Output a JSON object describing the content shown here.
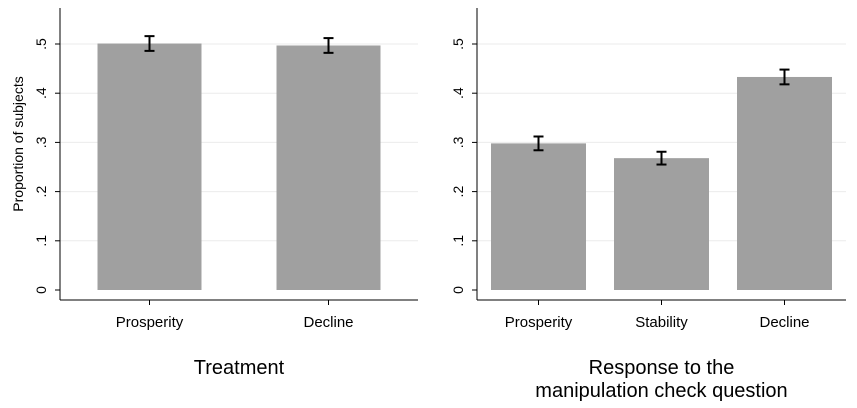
{
  "chart_data": [
    {
      "type": "bar",
      "categories": [
        "Prosperity",
        "Decline"
      ],
      "values": [
        0.501,
        0.497
      ],
      "error": [
        [
          0.486,
          0.516
        ],
        [
          0.482,
          0.512
        ]
      ],
      "ylabel": "Proportion of subjects",
      "xlabel": "Treatment",
      "ylim": [
        0,
        0.55
      ],
      "yticks": [
        0,
        0.1,
        0.2,
        0.3,
        0.4,
        0.5
      ],
      "ytick_labels": [
        "0",
        ".1",
        ".2",
        ".3",
        ".4",
        ".5"
      ],
      "grid": true,
      "bar_color": "#a0a0a0"
    },
    {
      "type": "bar",
      "categories": [
        "Prosperity",
        "Stability",
        "Decline"
      ],
      "values": [
        0.298,
        0.268,
        0.433
      ],
      "error": [
        [
          0.284,
          0.312
        ],
        [
          0.255,
          0.281
        ],
        [
          0.418,
          0.448
        ]
      ],
      "ylabel": "",
      "xlabel": "Response to the manipulation check question",
      "xlabel_lines": [
        "Response to the",
        "manipulation check question"
      ],
      "ylim": [
        0,
        0.55
      ],
      "yticks": [
        0,
        0.1,
        0.2,
        0.3,
        0.4,
        0.5
      ],
      "ytick_labels": [
        "0",
        ".1",
        ".2",
        ".3",
        ".4",
        ".5"
      ],
      "grid": true,
      "bar_color": "#a0a0a0"
    }
  ]
}
